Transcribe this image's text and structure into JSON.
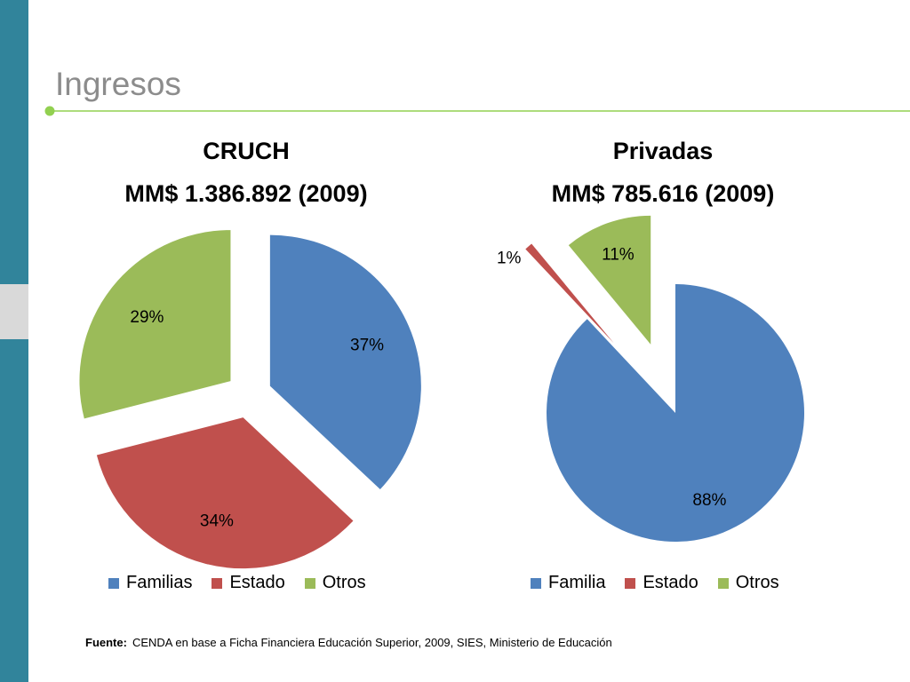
{
  "slide": {
    "title": "Ingresos",
    "source_label": "Fuente:",
    "source_text": "CENDA en base a Ficha Financiera Educación Superior, 2009, SIES, Ministerio de Educación"
  },
  "colors": {
    "sidebar": "#31849B",
    "sidebar_light": "#D9D9D9",
    "title_text": "#8C8C8C",
    "rule": "#92D050",
    "blue": "#4F81BD",
    "red": "#C0504D",
    "green": "#9BBB59"
  },
  "chart_data": [
    {
      "type": "pie",
      "title": "CRUCH",
      "subtitle": "MM$ 1.386.892 (2009)",
      "exploded": true,
      "legend_position": "bottom",
      "slices": [
        {
          "label": "Familias",
          "value": 37,
          "display": "37%",
          "color": "#4F81BD"
        },
        {
          "label": "Estado",
          "value": 34,
          "display": "34%",
          "color": "#C0504D"
        },
        {
          "label": "Otros",
          "value": 29,
          "display": "29%",
          "color": "#9BBB59"
        }
      ]
    },
    {
      "type": "pie",
      "title": "Privadas",
      "subtitle": "MM$ 785.616 (2009)",
      "exploded": true,
      "legend_position": "bottom",
      "slices": [
        {
          "label": "Familia",
          "value": 88,
          "display": "88%",
          "color": "#4F81BD"
        },
        {
          "label": "Estado",
          "value": 1,
          "display": "1%",
          "color": "#C0504D"
        },
        {
          "label": "Otros",
          "value": 11,
          "display": "11%",
          "color": "#9BBB59"
        }
      ]
    }
  ]
}
